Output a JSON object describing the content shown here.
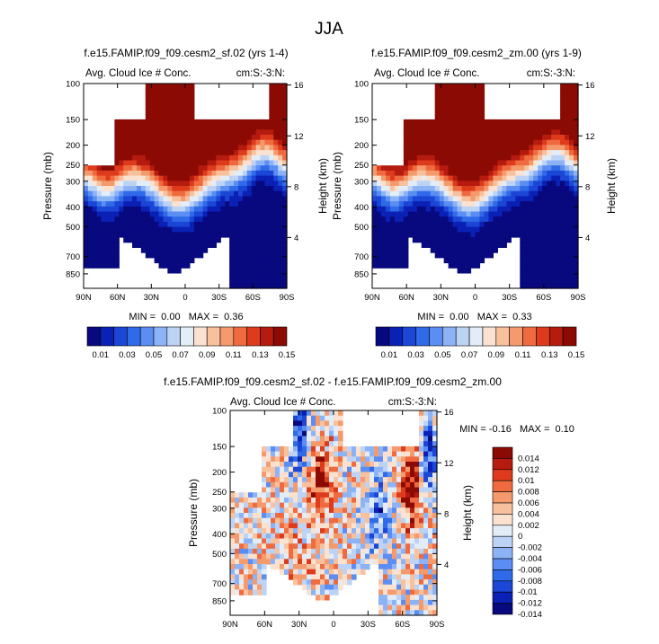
{
  "figure": {
    "title": "JJA"
  },
  "palette": {
    "seq": [
      "#08097e",
      "#0b21b5",
      "#1b46d6",
      "#2f6ae8",
      "#5b8df2",
      "#8db3f7",
      "#bcd3f6",
      "#e2edf8",
      "#fbe2d0",
      "#f8c19e",
      "#f59a6c",
      "#ef6b3f",
      "#de3b1c",
      "#b51b0e",
      "#8b0a04"
    ],
    "div": [
      "#08097e",
      "#0b21b5",
      "#1b46d6",
      "#2f6ae8",
      "#5b8df2",
      "#8db3f7",
      "#bcd3f6",
      "#e2edf8",
      "#fbe2d0",
      "#f8c19e",
      "#f59a6c",
      "#ef6b3f",
      "#de3b1c",
      "#b51b0e",
      "#8b0a04"
    ],
    "sparse": "#ffffff",
    "axis": "#000000"
  },
  "chart_data": [
    {
      "type": "heatmap",
      "title": "f.e15.FAMIP.f09_f09.cesm2_sf.02 (yrs 1-4)",
      "left_string": "Avg. Cloud Ice # Conc.",
      "right_string": "cm:S:-3:N:",
      "xlabel": "",
      "ylabel": "Pressure (mb)",
      "ylabel_right": "Height (km)",
      "x_ticks": [
        "90N",
        "60N",
        "30N",
        "0",
        "30S",
        "60S",
        "90S"
      ],
      "y_ticks": [
        100,
        150,
        200,
        250,
        300,
        400,
        500,
        700,
        850
      ],
      "y_ticks_right": [
        16,
        12,
        8,
        4
      ],
      "xlim": [
        90,
        -90
      ],
      "ylim_mb": [
        1000,
        100
      ],
      "stats": {
        "min": "0.00",
        "max": "0.36",
        "text": "MIN =  0.00   MAX =  0.36"
      },
      "field": "ice",
      "seed": 3,
      "colorbar": {
        "orientation": "horizontal",
        "levels": [
          0.01,
          0.02,
          0.03,
          0.04,
          0.05,
          0.06,
          0.07,
          0.08,
          0.09,
          0.1,
          0.11,
          0.12,
          0.13,
          0.14
        ],
        "labels": [
          "0.01",
          "0.03",
          "0.05",
          "0.07",
          "0.09",
          "0.11",
          "0.13",
          "0.15"
        ]
      }
    },
    {
      "type": "heatmap",
      "title": "f.e15.FAMIP.f09_f09.cesm2_zm.00 (yrs 1-9)",
      "left_string": "Avg. Cloud Ice # Conc.",
      "right_string": "cm:S:-3:N:",
      "xlabel": "",
      "ylabel": "Pressure (mb)",
      "ylabel_right": "Height (km)",
      "x_ticks": [
        "90N",
        "60N",
        "30N",
        "0",
        "30S",
        "60S",
        "90S"
      ],
      "y_ticks": [
        100,
        150,
        200,
        250,
        300,
        400,
        500,
        700,
        850
      ],
      "y_ticks_right": [
        16,
        12,
        8,
        4
      ],
      "xlim": [
        90,
        -90
      ],
      "ylim_mb": [
        1000,
        100
      ],
      "stats": {
        "min": "0.00",
        "max": "0.33",
        "text": "MIN =  0.00   MAX =  0.33"
      },
      "field": "ice",
      "seed": 7,
      "colorbar": {
        "orientation": "horizontal",
        "levels": [
          0.01,
          0.02,
          0.03,
          0.04,
          0.05,
          0.06,
          0.07,
          0.08,
          0.09,
          0.1,
          0.11,
          0.12,
          0.13,
          0.14
        ],
        "labels": [
          "0.01",
          "0.03",
          "0.05",
          "0.07",
          "0.09",
          "0.11",
          "0.13",
          "0.15"
        ]
      }
    },
    {
      "type": "heatmap",
      "title": "f.e15.FAMIP.f09_f09.cesm2_sf.02 - f.e15.FAMIP.f09_f09.cesm2_zm.00",
      "left_string": "Avg. Cloud Ice # Conc.",
      "right_string": "cm:S:-3:N:",
      "xlabel": "",
      "ylabel": "Pressure (mb)",
      "ylabel_right": "Height (km)",
      "x_ticks": [
        "90N",
        "60N",
        "30N",
        "0",
        "30S",
        "60S",
        "90S"
      ],
      "y_ticks": [
        100,
        150,
        200,
        250,
        300,
        400,
        500,
        700,
        850
      ],
      "y_ticks_right": [
        16,
        12,
        8,
        4
      ],
      "xlim": [
        90,
        -90
      ],
      "ylim_mb": [
        1000,
        100
      ],
      "stats": {
        "min": "-0.16",
        "max": "0.10",
        "text": "MIN = -0.16   MAX =  0.10"
      },
      "field": "diff",
      "seed": 11,
      "colorbar": {
        "orientation": "vertical",
        "levels": [
          -0.014,
          -0.012,
          -0.01,
          -0.008,
          -0.006,
          -0.004,
          -0.002,
          0,
          0.002,
          0.004,
          0.006,
          0.008,
          0.01,
          0.012,
          0.014
        ],
        "labels": [
          "0.014",
          "0.012",
          "0.01",
          "0.008",
          "0.006",
          "0.004",
          "0.002",
          "0",
          "-0.002",
          "-0.004",
          "-0.006",
          "-0.008",
          "-0.01",
          "-0.012",
          "-0.014"
        ]
      }
    }
  ]
}
